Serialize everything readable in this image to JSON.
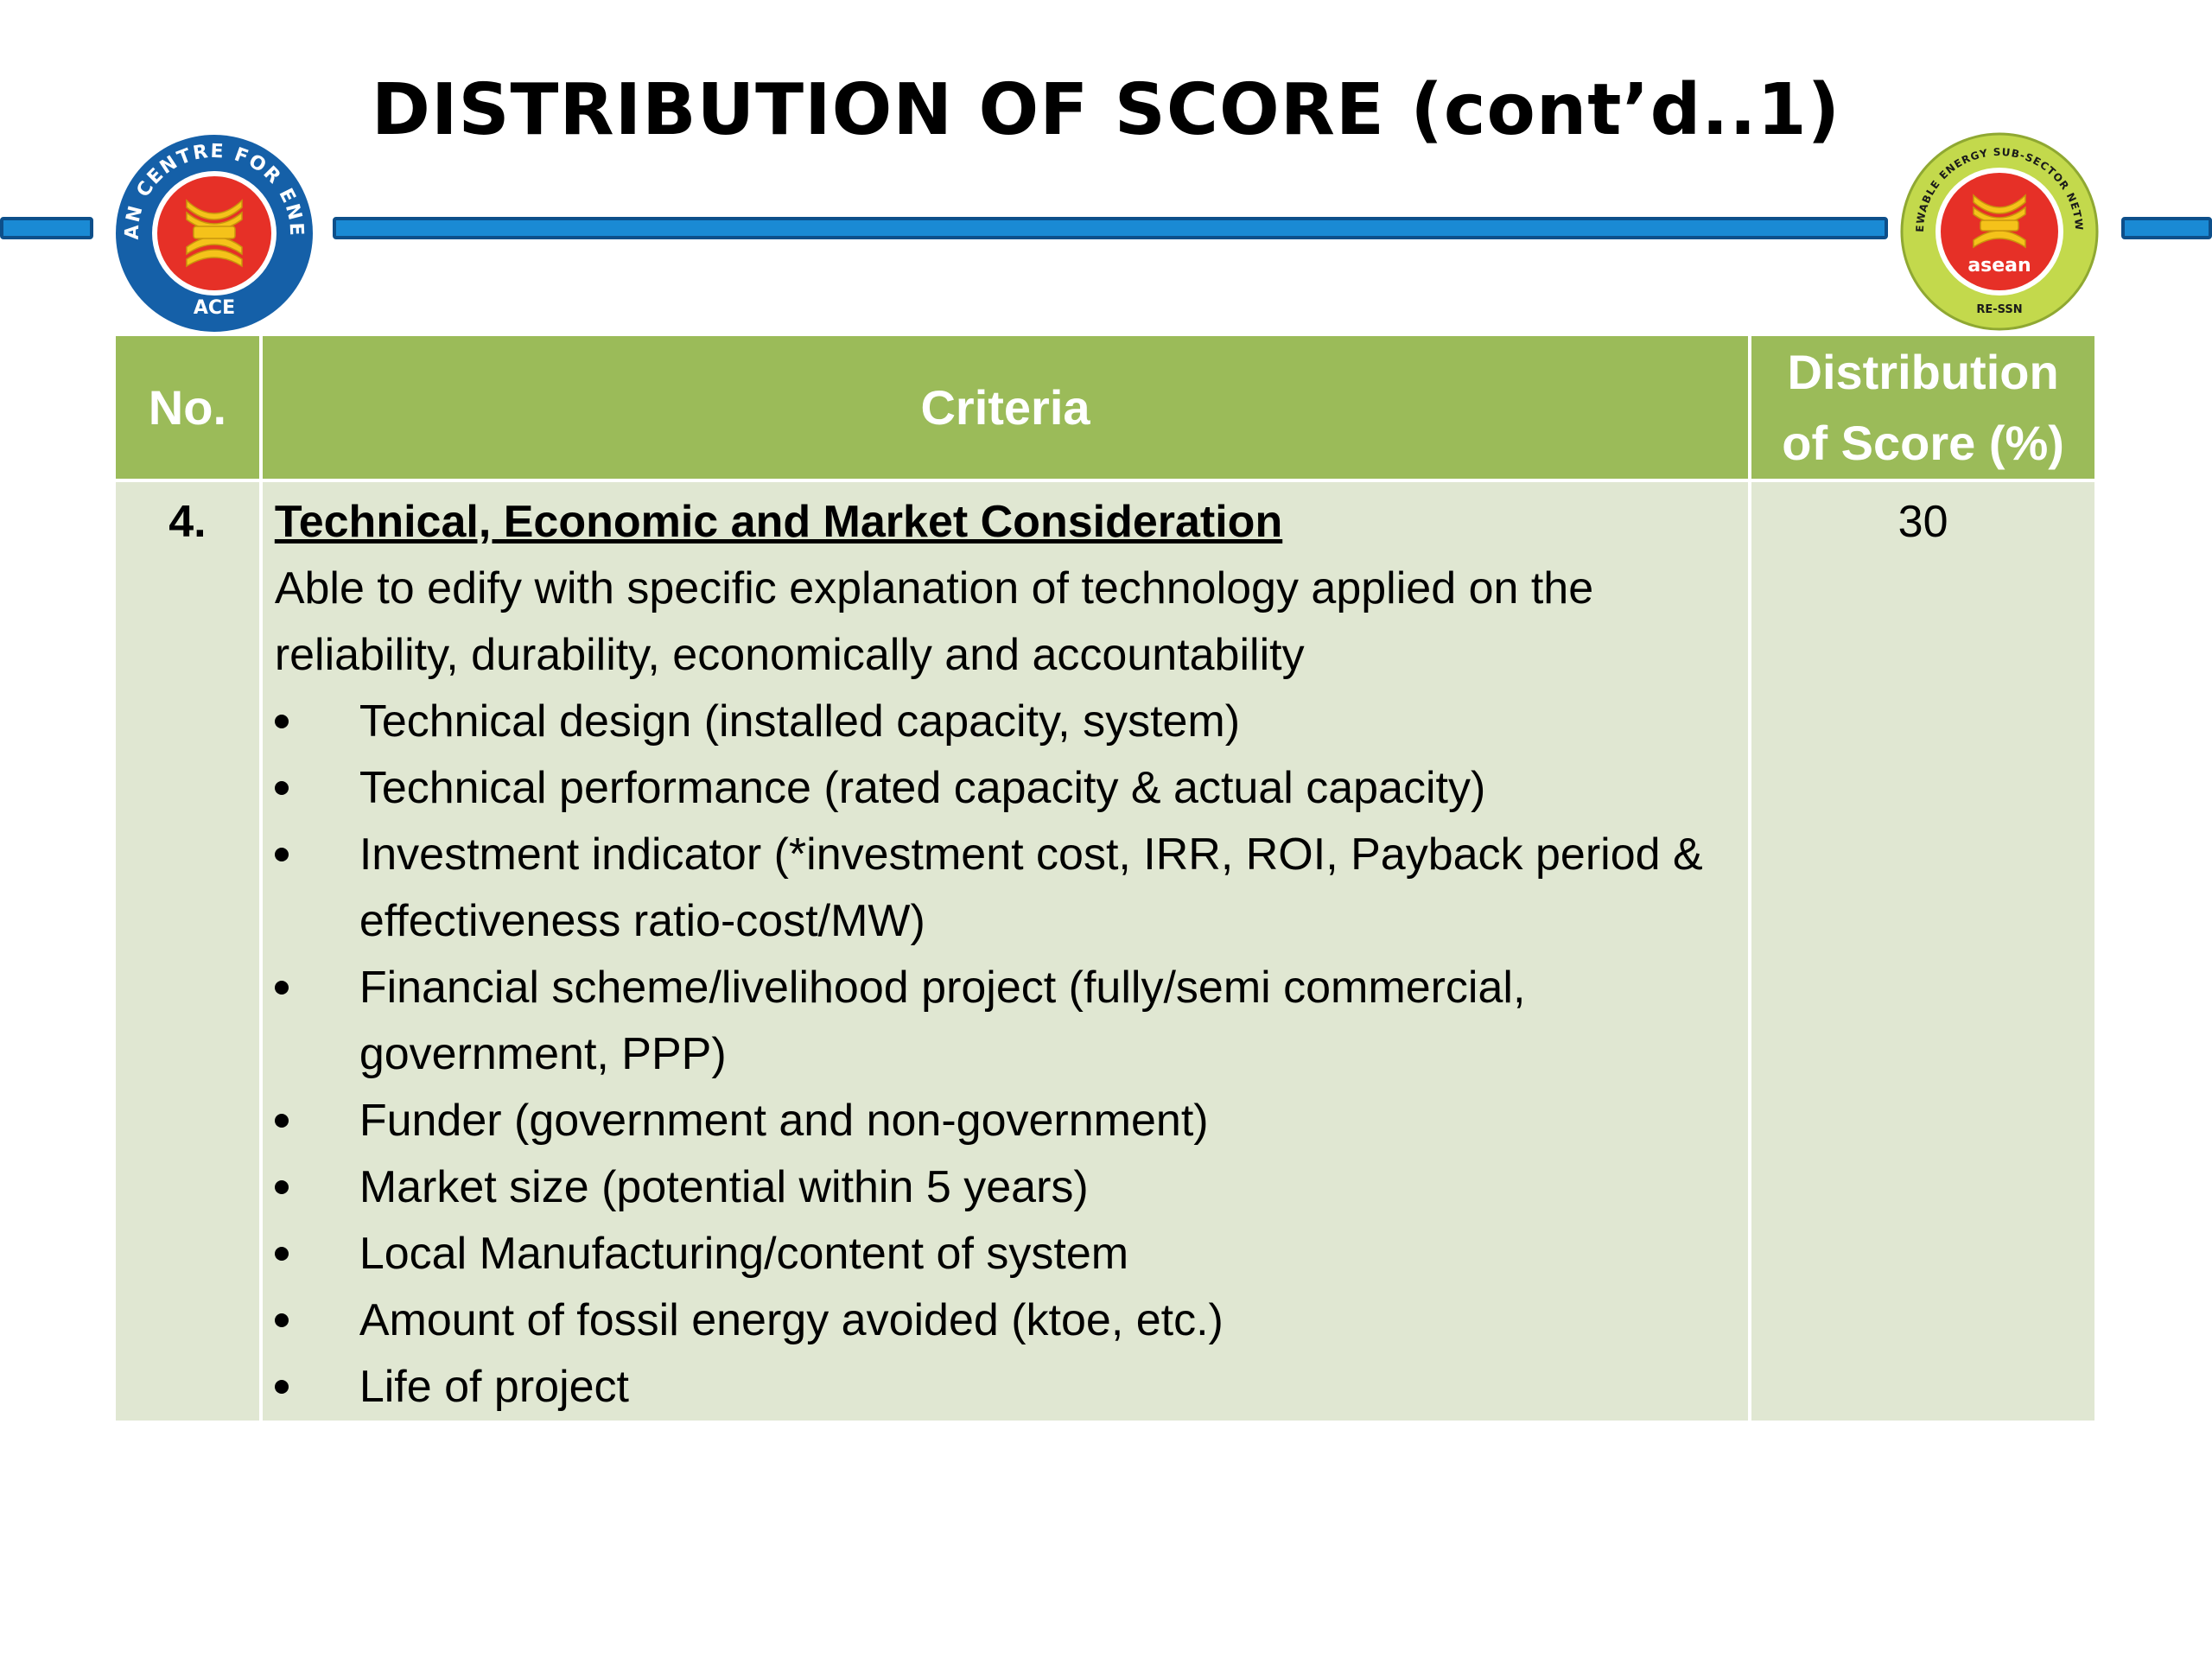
{
  "slide": {
    "title": "DISTRIBUTION OF SCORE (cont’d..1)"
  },
  "logos": {
    "left": {
      "ring_text": "ASEAN CENTRE FOR ENERGY",
      "bottom_text": "ACE",
      "ring_color": "#1560a8",
      "emblem_color": "#e63027"
    },
    "right": {
      "ring_text": "RENEWABLE ENERGY SUB-SECTOR NETWORK",
      "bottom_text": "RE-SSN",
      "emblem_word": "asean",
      "ring_color": "#c3d94c",
      "emblem_color": "#e63027"
    }
  },
  "colors": {
    "header_bg": "#9bbb59",
    "row_bg": "#e0e7d2",
    "bar_fill": "#1a8ad4",
    "bar_border": "#0d4f8a"
  },
  "table": {
    "headers": {
      "no": "No.",
      "criteria": "Criteria",
      "score": "Distribution of Score (%)"
    },
    "row": {
      "no": "4.",
      "heading": "Technical, Economic and Market Consideration",
      "description": "Able to edify with specific explanation of technology applied on the reliability, durability, economically and accountability",
      "items": [
        "Technical design (installed capacity, system)",
        "Technical performance (rated capacity & actual capacity)",
        "Investment indicator (*investment cost, IRR, ROI, Payback period & effectiveness ratio-cost/MW)",
        "Financial scheme/livelihood project (fully/semi commercial, government, PPP)",
        "Funder (government and non-government)",
        "Market size (potential within 5 years)",
        "Local Manufacturing/content of system",
        "Amount of fossil energy avoided (ktoe, etc.)",
        "Life of project"
      ],
      "score": "30"
    }
  }
}
